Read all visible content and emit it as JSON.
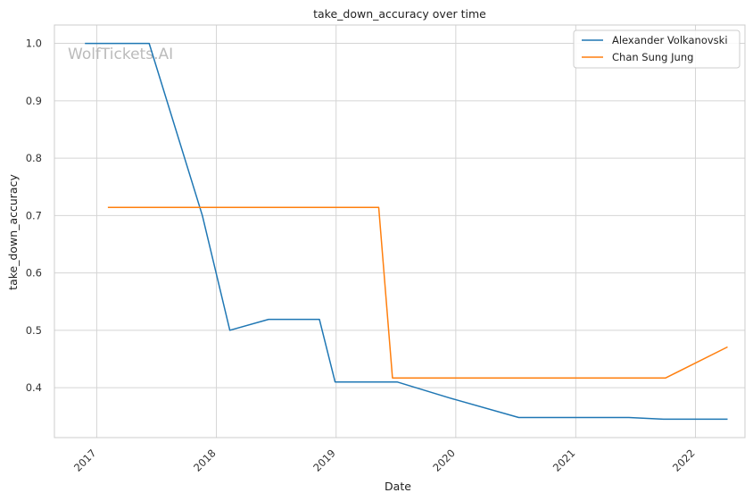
{
  "chart_data": {
    "type": "line",
    "title": "take_down_accuracy over time",
    "xlabel": "Date",
    "ylabel": "take_down_accuracy",
    "watermark": "WolfTickets.AI",
    "x_ticks": [
      "2017",
      "2018",
      "2019",
      "2020",
      "2021",
      "2022"
    ],
    "y_ticks": [
      "0.4",
      "0.5",
      "0.6",
      "0.7",
      "0.8",
      "0.9",
      "1.0"
    ],
    "xlim": [
      "2016-08-25",
      "2022-06-01"
    ],
    "ylim": [
      0.313,
      1.032
    ],
    "grid": true,
    "legend_position": "top-right",
    "series": [
      {
        "name": "Alexander Volkanovski",
        "color": "#1f77b4",
        "points": [
          {
            "x": "2016-11-26",
            "y": 1.0
          },
          {
            "x": "2017-06-10",
            "y": 1.0
          },
          {
            "x": "2017-11-19",
            "y": 0.7
          },
          {
            "x": "2018-02-11",
            "y": 0.5
          },
          {
            "x": "2018-06-09",
            "y": 0.519
          },
          {
            "x": "2018-11-11",
            "y": 0.519
          },
          {
            "x": "2018-12-29",
            "y": 0.41
          },
          {
            "x": "2019-07-06",
            "y": 0.41
          },
          {
            "x": "2019-12-14",
            "y": 0.382
          },
          {
            "x": "2020-07-11",
            "y": 0.348
          },
          {
            "x": "2021-06-12",
            "y": 0.348
          },
          {
            "x": "2021-09-25",
            "y": 0.345
          },
          {
            "x": "2022-04-09",
            "y": 0.345
          }
        ]
      },
      {
        "name": "Chan Sung Jung",
        "color": "#ff7f0e",
        "points": [
          {
            "x": "2017-02-04",
            "y": 0.714
          },
          {
            "x": "2019-05-11",
            "y": 0.714
          },
          {
            "x": "2019-06-22",
            "y": 0.417
          },
          {
            "x": "2021-10-02",
            "y": 0.417
          },
          {
            "x": "2022-04-09",
            "y": 0.471
          }
        ]
      }
    ]
  }
}
